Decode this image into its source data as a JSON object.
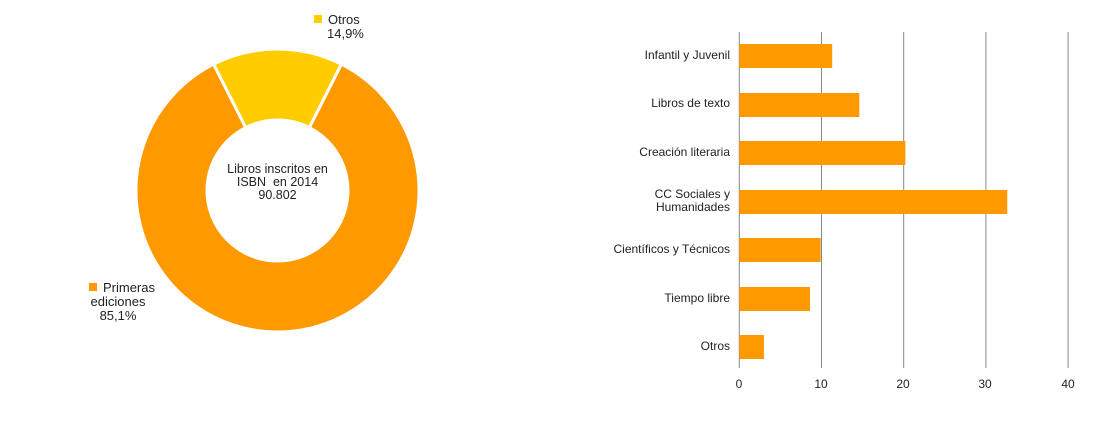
{
  "colors": {
    "orange": "#FF9900",
    "yellow": "#FFCC00",
    "gridline": "#888888",
    "text": "#222222"
  },
  "donut": {
    "center_label": {
      "line1": "Libros inscritos en",
      "line2": "ISBN  en 2014",
      "value": "90.802"
    },
    "slices": [
      {
        "label": "Otros",
        "pct_label": "14,9%",
        "value": 14.9,
        "color": "#FFCC00"
      },
      {
        "label_line1": "Primeras",
        "label_line2": "ediciones",
        "label": "Primeras ediciones",
        "pct_label": "85,1%",
        "value": 85.1,
        "color": "#FF9900"
      }
    ]
  },
  "bars": {
    "categories": [
      {
        "label": "Infantil y Juvenil",
        "value": 11.3
      },
      {
        "label": "Libros de texto",
        "value": 14.6
      },
      {
        "label": "Creación literaria",
        "value": 20.2
      },
      {
        "label_line1": "CC Sociales y",
        "label_line2": "Humanidades",
        "label": "CC Sociales y Humanidades",
        "value": 32.6
      },
      {
        "label": "Científicos y Técnicos",
        "value": 9.9
      },
      {
        "label": "Tiempo libre",
        "value": 8.6
      },
      {
        "label": "Otros",
        "value": 3.0
      }
    ],
    "ticks": [
      "0",
      "10",
      "20",
      "30",
      "40"
    ]
  },
  "chart_data": [
    {
      "type": "pie",
      "subtype": "donut",
      "title": "Libros inscritos en ISBN en 2014",
      "center_text": "Libros inscritos en ISBN en 2014 90.802",
      "total": 90802,
      "categories": [
        "Otros",
        "Primeras ediciones"
      ],
      "values": [
        14.9,
        85.1
      ],
      "unit": "%",
      "colors": [
        "#FFCC00",
        "#FF9900"
      ],
      "legend_position": "inline labels"
    },
    {
      "type": "bar",
      "orientation": "horizontal",
      "title": "",
      "xlabel": "",
      "ylabel": "",
      "categories": [
        "Infantil y Juvenil",
        "Libros de texto",
        "Creación literaria",
        "CC Sociales y Humanidades",
        "Científicos y Técnicos",
        "Tiempo libre",
        "Otros"
      ],
      "values": [
        11.3,
        14.6,
        20.2,
        32.6,
        9.9,
        8.6,
        3.0
      ],
      "xlim": [
        0,
        40
      ],
      "xticks": [
        0,
        10,
        20,
        30,
        40
      ],
      "grid": "vertical",
      "color": "#FF9900"
    }
  ]
}
